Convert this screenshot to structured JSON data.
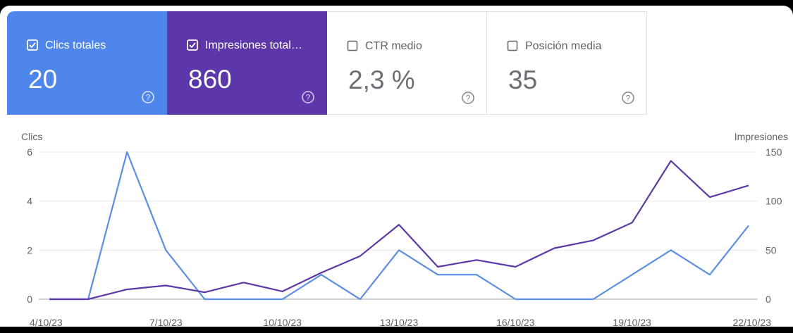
{
  "cards": [
    {
      "label": "Clics totales",
      "value": "20",
      "checked": true,
      "color": "#4e86ec"
    },
    {
      "label": "Impresiones total…",
      "value": "860",
      "checked": true,
      "color": "#5b37aa"
    },
    {
      "label": "CTR medio",
      "value": "2,3 %",
      "checked": false
    },
    {
      "label": "Posición media",
      "value": "35",
      "checked": false
    }
  ],
  "icons": {
    "checkbox": "checkbox-icon",
    "help": "help-circle-icon"
  },
  "chart_data": {
    "type": "line",
    "x": [
      "4/10/23",
      "5/10/23",
      "6/10/23",
      "7/10/23",
      "8/10/23",
      "9/10/23",
      "10/10/23",
      "11/10/23",
      "12/10/23",
      "13/10/23",
      "14/10/23",
      "15/10/23",
      "16/10/23",
      "17/10/23",
      "18/10/23",
      "19/10/23",
      "20/10/23",
      "21/10/23",
      "22/10/23"
    ],
    "x_tick_labels": [
      "4/10/23",
      "7/10/23",
      "10/10/23",
      "13/10/23",
      "16/10/23",
      "19/10/23",
      "22/10/23"
    ],
    "series": [
      {
        "name": "Clics",
        "axis": "left",
        "color": "#5a8ee6",
        "values": [
          0,
          0,
          6,
          2,
          0,
          0,
          0,
          1,
          0,
          2,
          1,
          1,
          0,
          0,
          0,
          1,
          2,
          1,
          3
        ]
      },
      {
        "name": "Impresiones",
        "axis": "right",
        "color": "#5b37aa",
        "values": [
          0,
          0,
          10,
          14,
          7,
          17,
          8,
          27,
          44,
          76,
          33,
          40,
          33,
          52,
          60,
          78,
          141,
          104,
          116
        ]
      }
    ],
    "ylabel_left": "Clics",
    "ylabel_right": "Impresiones",
    "ylim_left": [
      0,
      6
    ],
    "yticks_left": [
      "0",
      "2",
      "4",
      "6"
    ],
    "ylim_right": [
      0,
      150
    ],
    "yticks_right": [
      "0",
      "50",
      "100",
      "150"
    ],
    "grid": true
  }
}
